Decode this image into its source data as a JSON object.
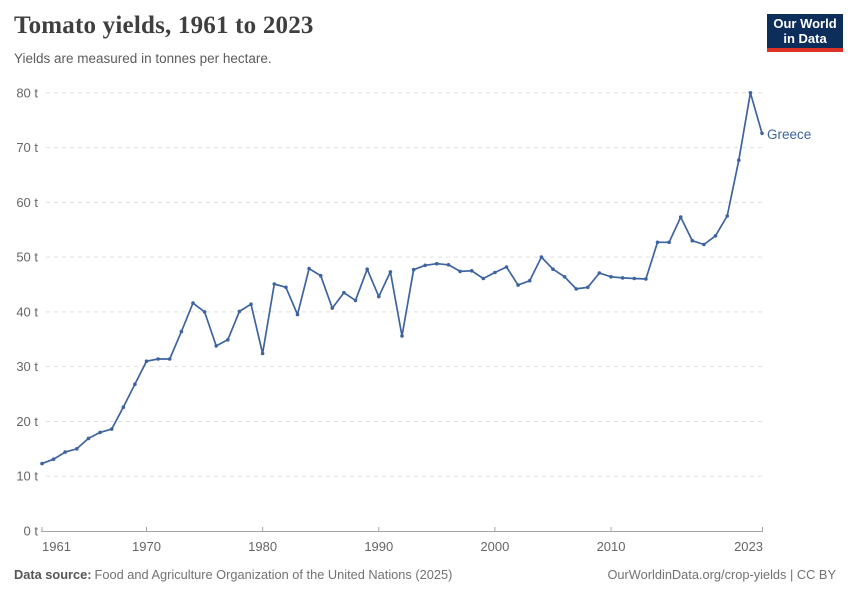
{
  "header": {
    "title": "Tomato yields, 1961 to 2023",
    "subtitle": "Yields are measured in tonnes per hectare."
  },
  "logo": {
    "line1": "Our World",
    "line2": "in Data",
    "bg_color": "#0d2d5a",
    "accent_color": "#dc3226"
  },
  "footer": {
    "source_label": "Data source:",
    "source_text": "Food and Agriculture Organization of the United Nations (2025)",
    "credit": "OurWorldinData.org/crop-yields | CC BY"
  },
  "chart_data": {
    "type": "line",
    "title": "Tomato yields, 1961 to 2023",
    "subtitle": "Yields are measured in tonnes per hectare.",
    "xlabel": "",
    "ylabel": "tonnes per hectare",
    "x_range": [
      1961,
      2023
    ],
    "ylim": [
      0,
      80
    ],
    "grid": "horizontal-dashed",
    "legend_position": "end-of-line-label",
    "x_ticks": [
      "1961",
      "1970",
      "1980",
      "1990",
      "2000",
      "2010",
      "2023"
    ],
    "y_ticks": [
      "0 t",
      "10 t",
      "20 t",
      "30 t",
      "40 t",
      "50 t",
      "60 t",
      "70 t",
      "80 t"
    ],
    "line_color": "#3d63a0",
    "grid_color": "#e0e0e0",
    "axis_color": "#a6a6a6",
    "tick_label_color": "#666666",
    "series": [
      {
        "name": "Greece",
        "years": [
          1961,
          1962,
          1963,
          1964,
          1965,
          1966,
          1967,
          1968,
          1969,
          1970,
          1971,
          1972,
          1973,
          1974,
          1975,
          1976,
          1977,
          1978,
          1979,
          1980,
          1981,
          1982,
          1983,
          1984,
          1985,
          1986,
          1987,
          1988,
          1989,
          1990,
          1991,
          1992,
          1993,
          1994,
          1995,
          1996,
          1997,
          1998,
          1999,
          2000,
          2001,
          2002,
          2003,
          2004,
          2005,
          2006,
          2007,
          2008,
          2009,
          2010,
          2011,
          2012,
          2013,
          2014,
          2015,
          2016,
          2017,
          2018,
          2019,
          2020,
          2021,
          2022,
          2023
        ],
        "values": [
          12.3,
          13.1,
          14.4,
          15.0,
          16.9,
          18.0,
          18.6,
          22.6,
          26.8,
          31.0,
          31.4,
          31.4,
          36.4,
          41.6,
          40.0,
          33.8,
          34.9,
          40.1,
          41.4,
          32.4,
          45.1,
          44.5,
          39.5,
          47.9,
          46.6,
          40.7,
          43.5,
          42.1,
          47.8,
          42.8,
          47.3,
          35.6,
          47.7,
          48.5,
          48.8,
          48.6,
          47.4,
          47.5,
          46.1,
          47.2,
          48.2,
          44.9,
          45.7,
          50.0,
          47.8,
          46.4,
          44.2,
          44.5,
          47.1,
          46.4,
          46.2,
          46.1,
          46.0,
          52.7,
          52.7,
          57.3,
          53.0,
          52.3,
          53.9,
          57.5,
          67.7,
          80.0,
          72.6
        ]
      }
    ]
  }
}
